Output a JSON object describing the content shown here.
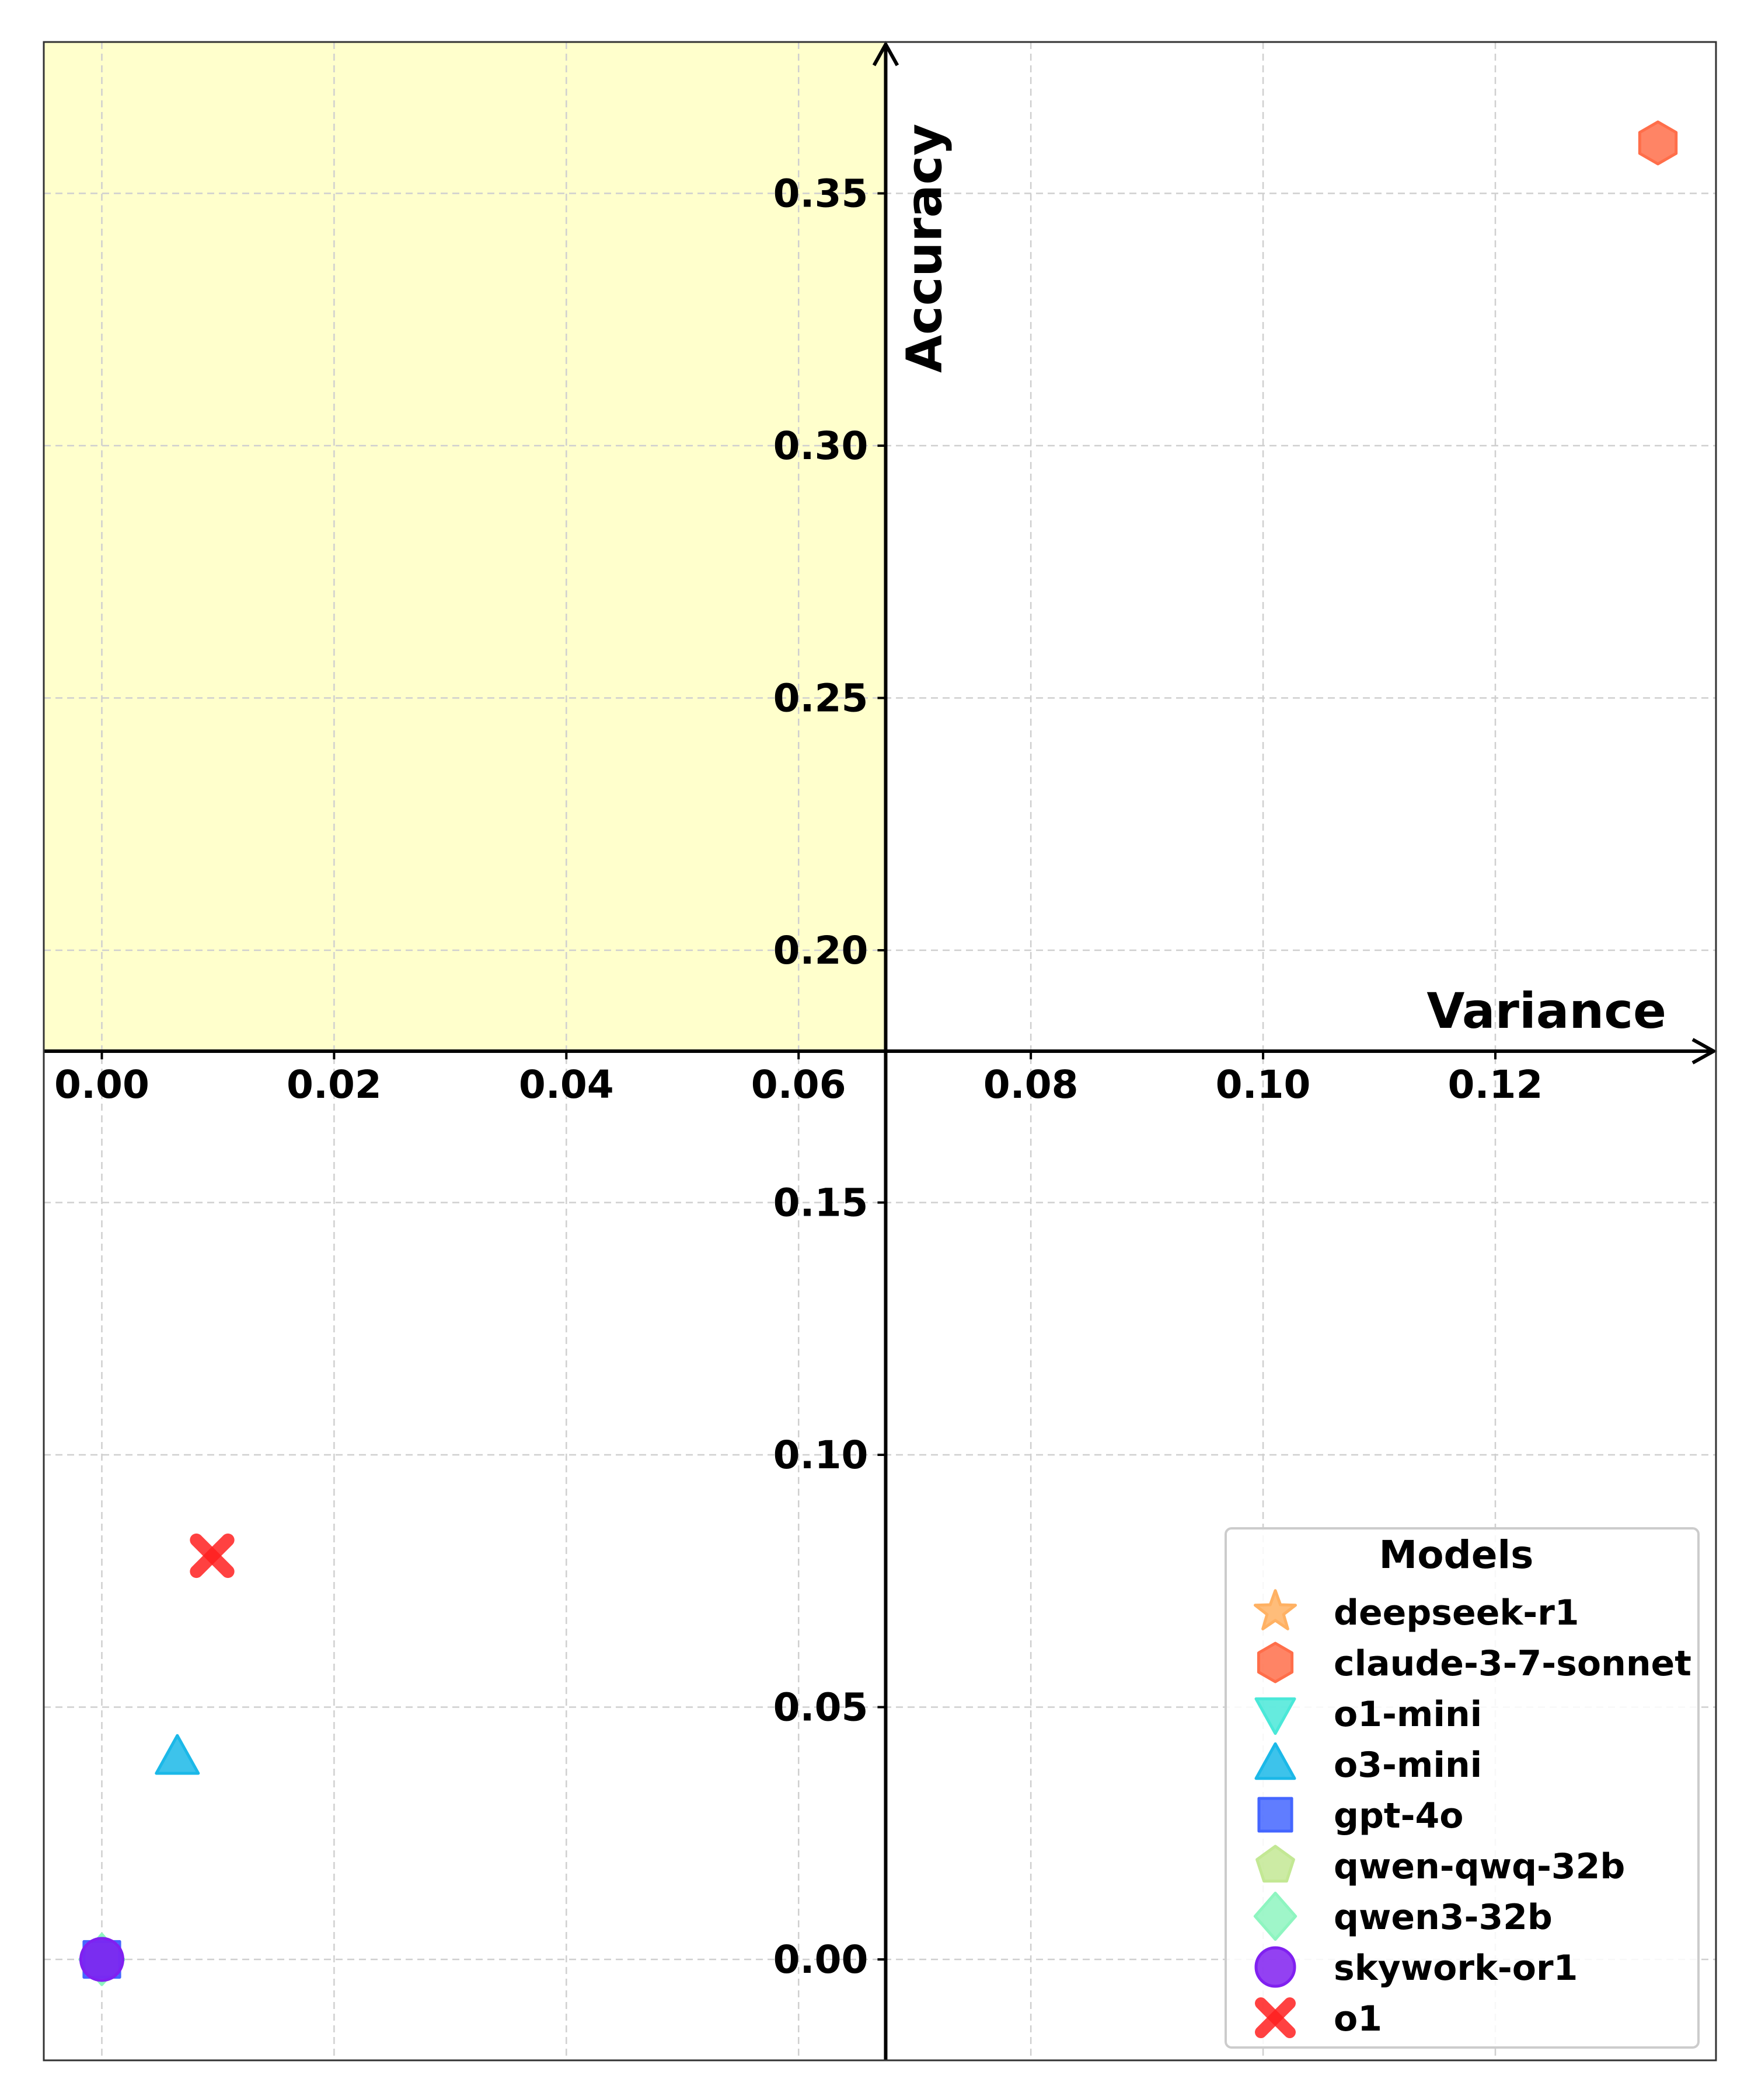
{
  "chart_data": {
    "type": "scatter",
    "xlabel": "Variance",
    "ylabel": "Accuracy",
    "xlim": [
      -0.005,
      0.139
    ],
    "ylim": [
      -0.02,
      0.38
    ],
    "xticks": [
      "0.00",
      "0.02",
      "0.04",
      "0.06",
      "0.08",
      "0.10",
      "0.12"
    ],
    "yticks": [
      "0.00",
      "0.05",
      "0.10",
      "0.15",
      "0.20",
      "0.25",
      "0.30",
      "0.35"
    ],
    "grid": true,
    "axes_crossing": {
      "x": 0.0675,
      "y": 0.18
    },
    "highlight_region": {
      "x": [
        -0.005,
        0.0675
      ],
      "y": [
        0.18,
        0.38
      ],
      "color": "#ffffcc"
    },
    "legend": {
      "title": "Models",
      "placement": "lower-right"
    },
    "series": [
      {
        "name": "deepseek-r1",
        "marker": "star",
        "color": "#ffb163",
        "points": []
      },
      {
        "name": "claude-3-7-sonnet",
        "marker": "hexagon",
        "color": "#ff6e4a",
        "points": [
          [
            0.134,
            0.36
          ]
        ]
      },
      {
        "name": "o1-mini",
        "marker": "triangle-down",
        "color": "#4ae8d8",
        "points": []
      },
      {
        "name": "o3-mini",
        "marker": "triangle-up",
        "color": "#1bb8e8",
        "points": [
          [
            0.0065,
            0.04
          ]
        ]
      },
      {
        "name": "gpt-4o",
        "marker": "square",
        "color": "#4466ff",
        "points": [
          [
            0.0,
            0.0
          ]
        ]
      },
      {
        "name": "qwen-qwq-32b",
        "marker": "pentagon",
        "color": "#c3e894",
        "points": [
          [
            0.0,
            0.0
          ]
        ]
      },
      {
        "name": "qwen3-32b",
        "marker": "diamond",
        "color": "#8ef5c0",
        "points": [
          [
            0.0,
            0.0
          ]
        ]
      },
      {
        "name": "skywork-or1",
        "marker": "circle",
        "color": "#8020f0",
        "points": [
          [
            0.0,
            0.0
          ]
        ]
      },
      {
        "name": "o1",
        "marker": "x",
        "color": "#ff2020",
        "points": [
          [
            0.0095,
            0.08
          ]
        ]
      }
    ]
  }
}
